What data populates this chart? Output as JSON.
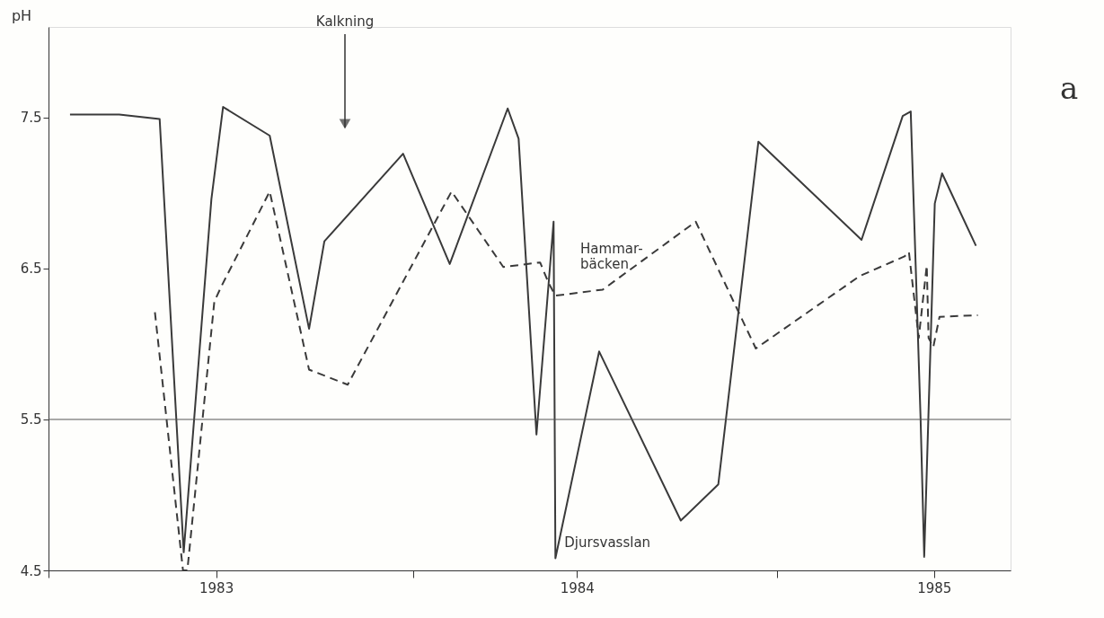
{
  "chart_data": {
    "type": "line",
    "ylabel": "pH",
    "xlim": [
      1983.0,
      1985.64
    ],
    "ylim": [
      4.5,
      8.1
    ],
    "xticks": [
      {
        "value": 1983.0,
        "label": null
      },
      {
        "value": 1983.46,
        "label": "1983"
      },
      {
        "value": 1984.0,
        "label": null
      },
      {
        "value": 1984.45,
        "label": "1984"
      },
      {
        "value": 1985.0,
        "label": null
      },
      {
        "value": 1985.43,
        "label": "1985"
      }
    ],
    "yticks": [
      4.5,
      5.5,
      6.5,
      7.5
    ],
    "grid": false,
    "legend": false,
    "marker": "none",
    "series": [
      {
        "name": "Djursvasslan",
        "color": "#3a3a3a",
        "line_style": "solid",
        "x": [
          1983.059,
          1983.194,
          1983.305,
          1983.371,
          1983.447,
          1983.479,
          1983.607,
          1983.715,
          1983.757,
          1983.973,
          1984.101,
          1984.26,
          1984.29,
          1984.339,
          1984.386,
          1984.391,
          1984.511,
          1984.735,
          1984.838,
          1984.948,
          1985.231,
          1985.344,
          1985.366,
          1985.393,
          1985.403,
          1985.432,
          1985.452,
          1985.545
        ],
        "values": [
          7.52,
          7.52,
          7.49,
          4.62,
          6.96,
          7.57,
          7.38,
          6.1,
          6.68,
          7.26,
          6.53,
          7.56,
          7.36,
          5.4,
          6.81,
          4.58,
          5.95,
          4.83,
          5.07,
          7.34,
          6.69,
          7.51,
          7.54,
          5.51,
          4.59,
          6.93,
          7.13,
          6.65
        ]
      },
      {
        "name": "Hammar-\nbäcken",
        "color": "#3a3a3a",
        "line_style": "dashed",
        "x": [
          1983.292,
          1983.369,
          1983.381,
          1983.455,
          1983.474,
          1983.607,
          1983.715,
          1983.821,
          1984.106,
          1984.248,
          1984.349,
          1984.373,
          1984.391,
          1984.521,
          1984.776,
          1984.941,
          1985.226,
          1985.349,
          1985.361,
          1985.388,
          1985.41,
          1985.415,
          1985.428,
          1985.445,
          1985.55
        ],
        "values": [
          6.21,
          4.5,
          4.5,
          6.28,
          6.38,
          7.01,
          5.83,
          5.73,
          7.01,
          6.51,
          6.54,
          6.4,
          6.32,
          6.36,
          6.81,
          5.97,
          6.45,
          6.58,
          6.61,
          6.04,
          6.52,
          6.04,
          5.98,
          6.18,
          6.19
        ]
      }
    ],
    "ref_lines": [
      {
        "axis": "y",
        "value": 5.5,
        "color": "#555555"
      }
    ],
    "annotations": [
      "Kalkning",
      "a"
    ]
  }
}
